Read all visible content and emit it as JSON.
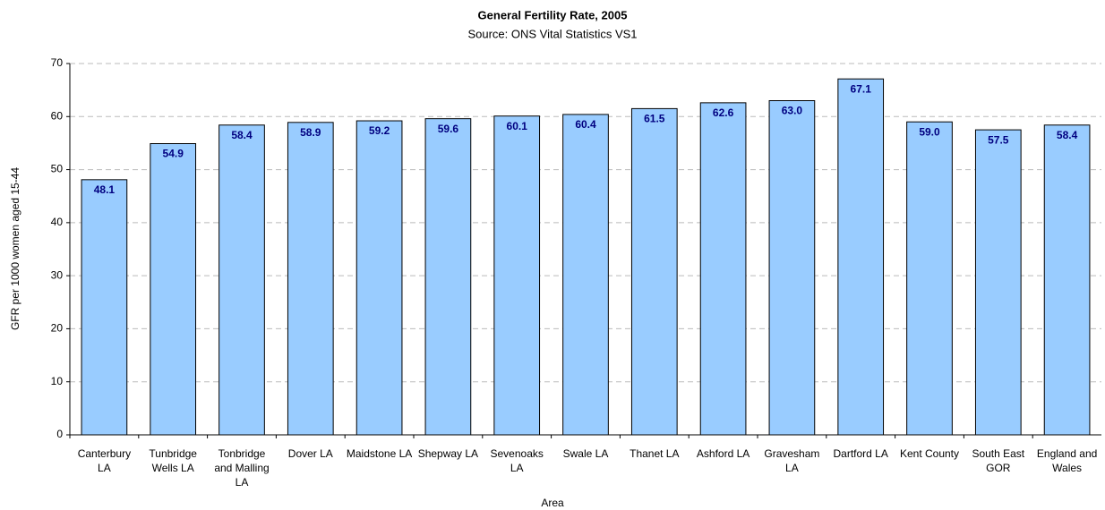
{
  "chart_data": {
    "type": "bar",
    "title": "General Fertility Rate, 2005",
    "subtitle": "Source: ONS Vital Statistics VS1",
    "x_label": "Area",
    "y_label": "GFR per 1000 women aged 15-44",
    "categories": [
      "Canterbury LA",
      "Tunbridge Wells LA",
      "Tonbridge and Malling LA",
      "Dover LA",
      "Maidstone LA",
      "Shepway LA",
      "Sevenoaks LA",
      "Swale LA",
      "Thanet LA",
      "Ashford LA",
      "Gravesham LA",
      "Dartford LA",
      "Kent County",
      "South East GOR",
      "England and Wales"
    ],
    "values": [
      48.1,
      54.9,
      58.4,
      58.9,
      59.2,
      59.6,
      60.1,
      60.4,
      61.5,
      62.6,
      63.0,
      67.1,
      59.0,
      57.5,
      58.4
    ],
    "value_labels": [
      "48.1",
      "54.9",
      "58.4",
      "58.9",
      "59.2",
      "59.6",
      "60.1",
      "60.4",
      "61.5",
      "62.6",
      "63.0",
      "67.1",
      "59.0",
      "57.5",
      "58.4"
    ],
    "color": "#99ccff",
    "ylim": [
      0,
      70
    ],
    "yticks": [
      0,
      10,
      20,
      30,
      40,
      50,
      60,
      70
    ],
    "grid": true
  }
}
